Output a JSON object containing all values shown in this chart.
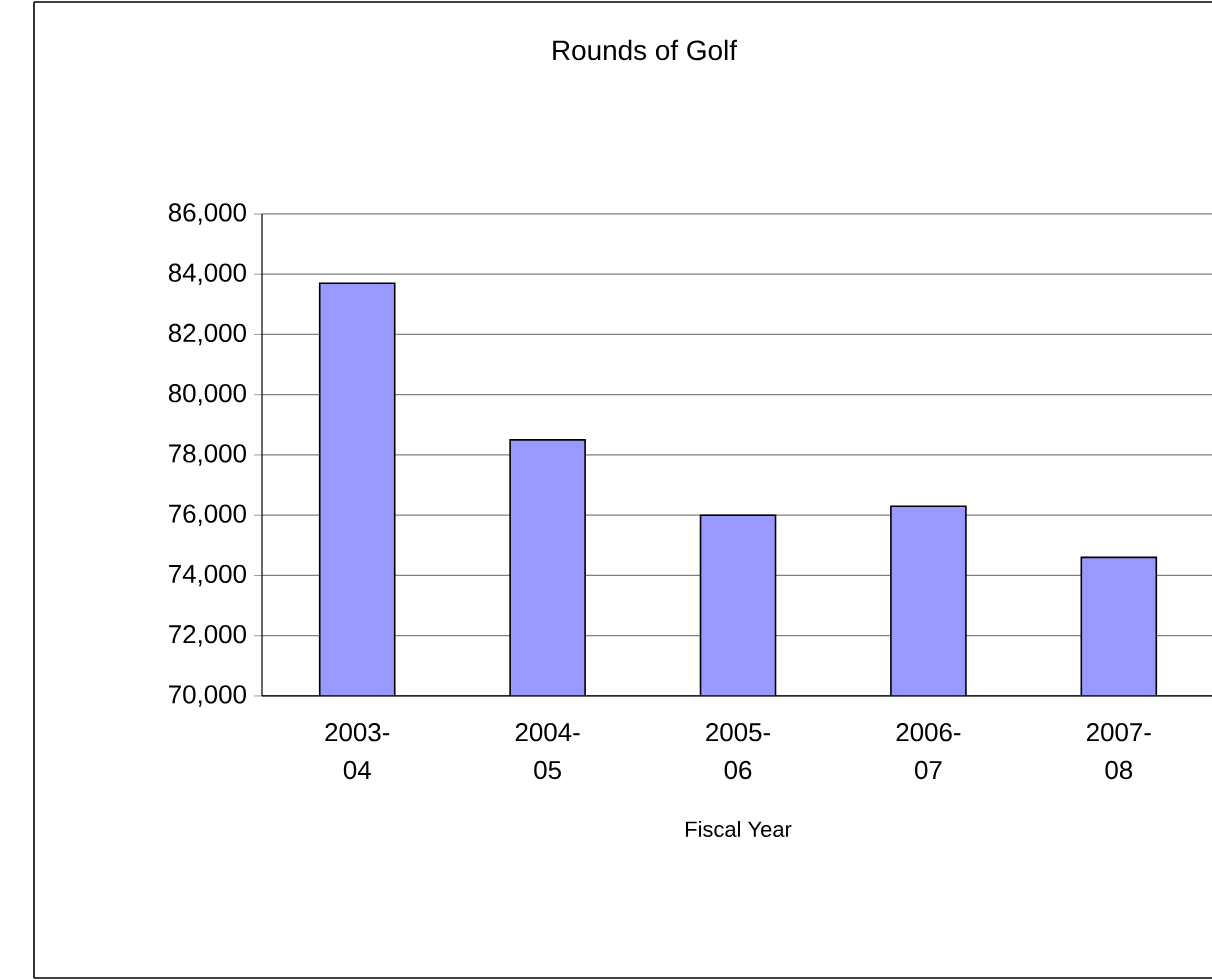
{
  "chart_data": {
    "type": "bar",
    "title": "Rounds of Golf",
    "xlabel": "Fiscal Year",
    "categories": [
      "2003-04",
      "2004-05",
      "2005-06",
      "2006-07",
      "2007-08"
    ],
    "values": [
      83700,
      78500,
      76000,
      76300,
      74600
    ],
    "color": "#9999ff",
    "ylim": [
      70000,
      86000
    ],
    "yticks": [
      {
        "value": 70000,
        "label": "70,000"
      },
      {
        "value": 72000,
        "label": "72,000"
      },
      {
        "value": 74000,
        "label": "74,000"
      },
      {
        "value": 76000,
        "label": "76,000"
      },
      {
        "value": 78000,
        "label": "78,000"
      },
      {
        "value": 80000,
        "label": "80,000"
      },
      {
        "value": 82000,
        "label": "82,000"
      },
      {
        "value": 84000,
        "label": "84,000"
      },
      {
        "value": 86000,
        "label": "86,000"
      }
    ],
    "grid": "y"
  }
}
